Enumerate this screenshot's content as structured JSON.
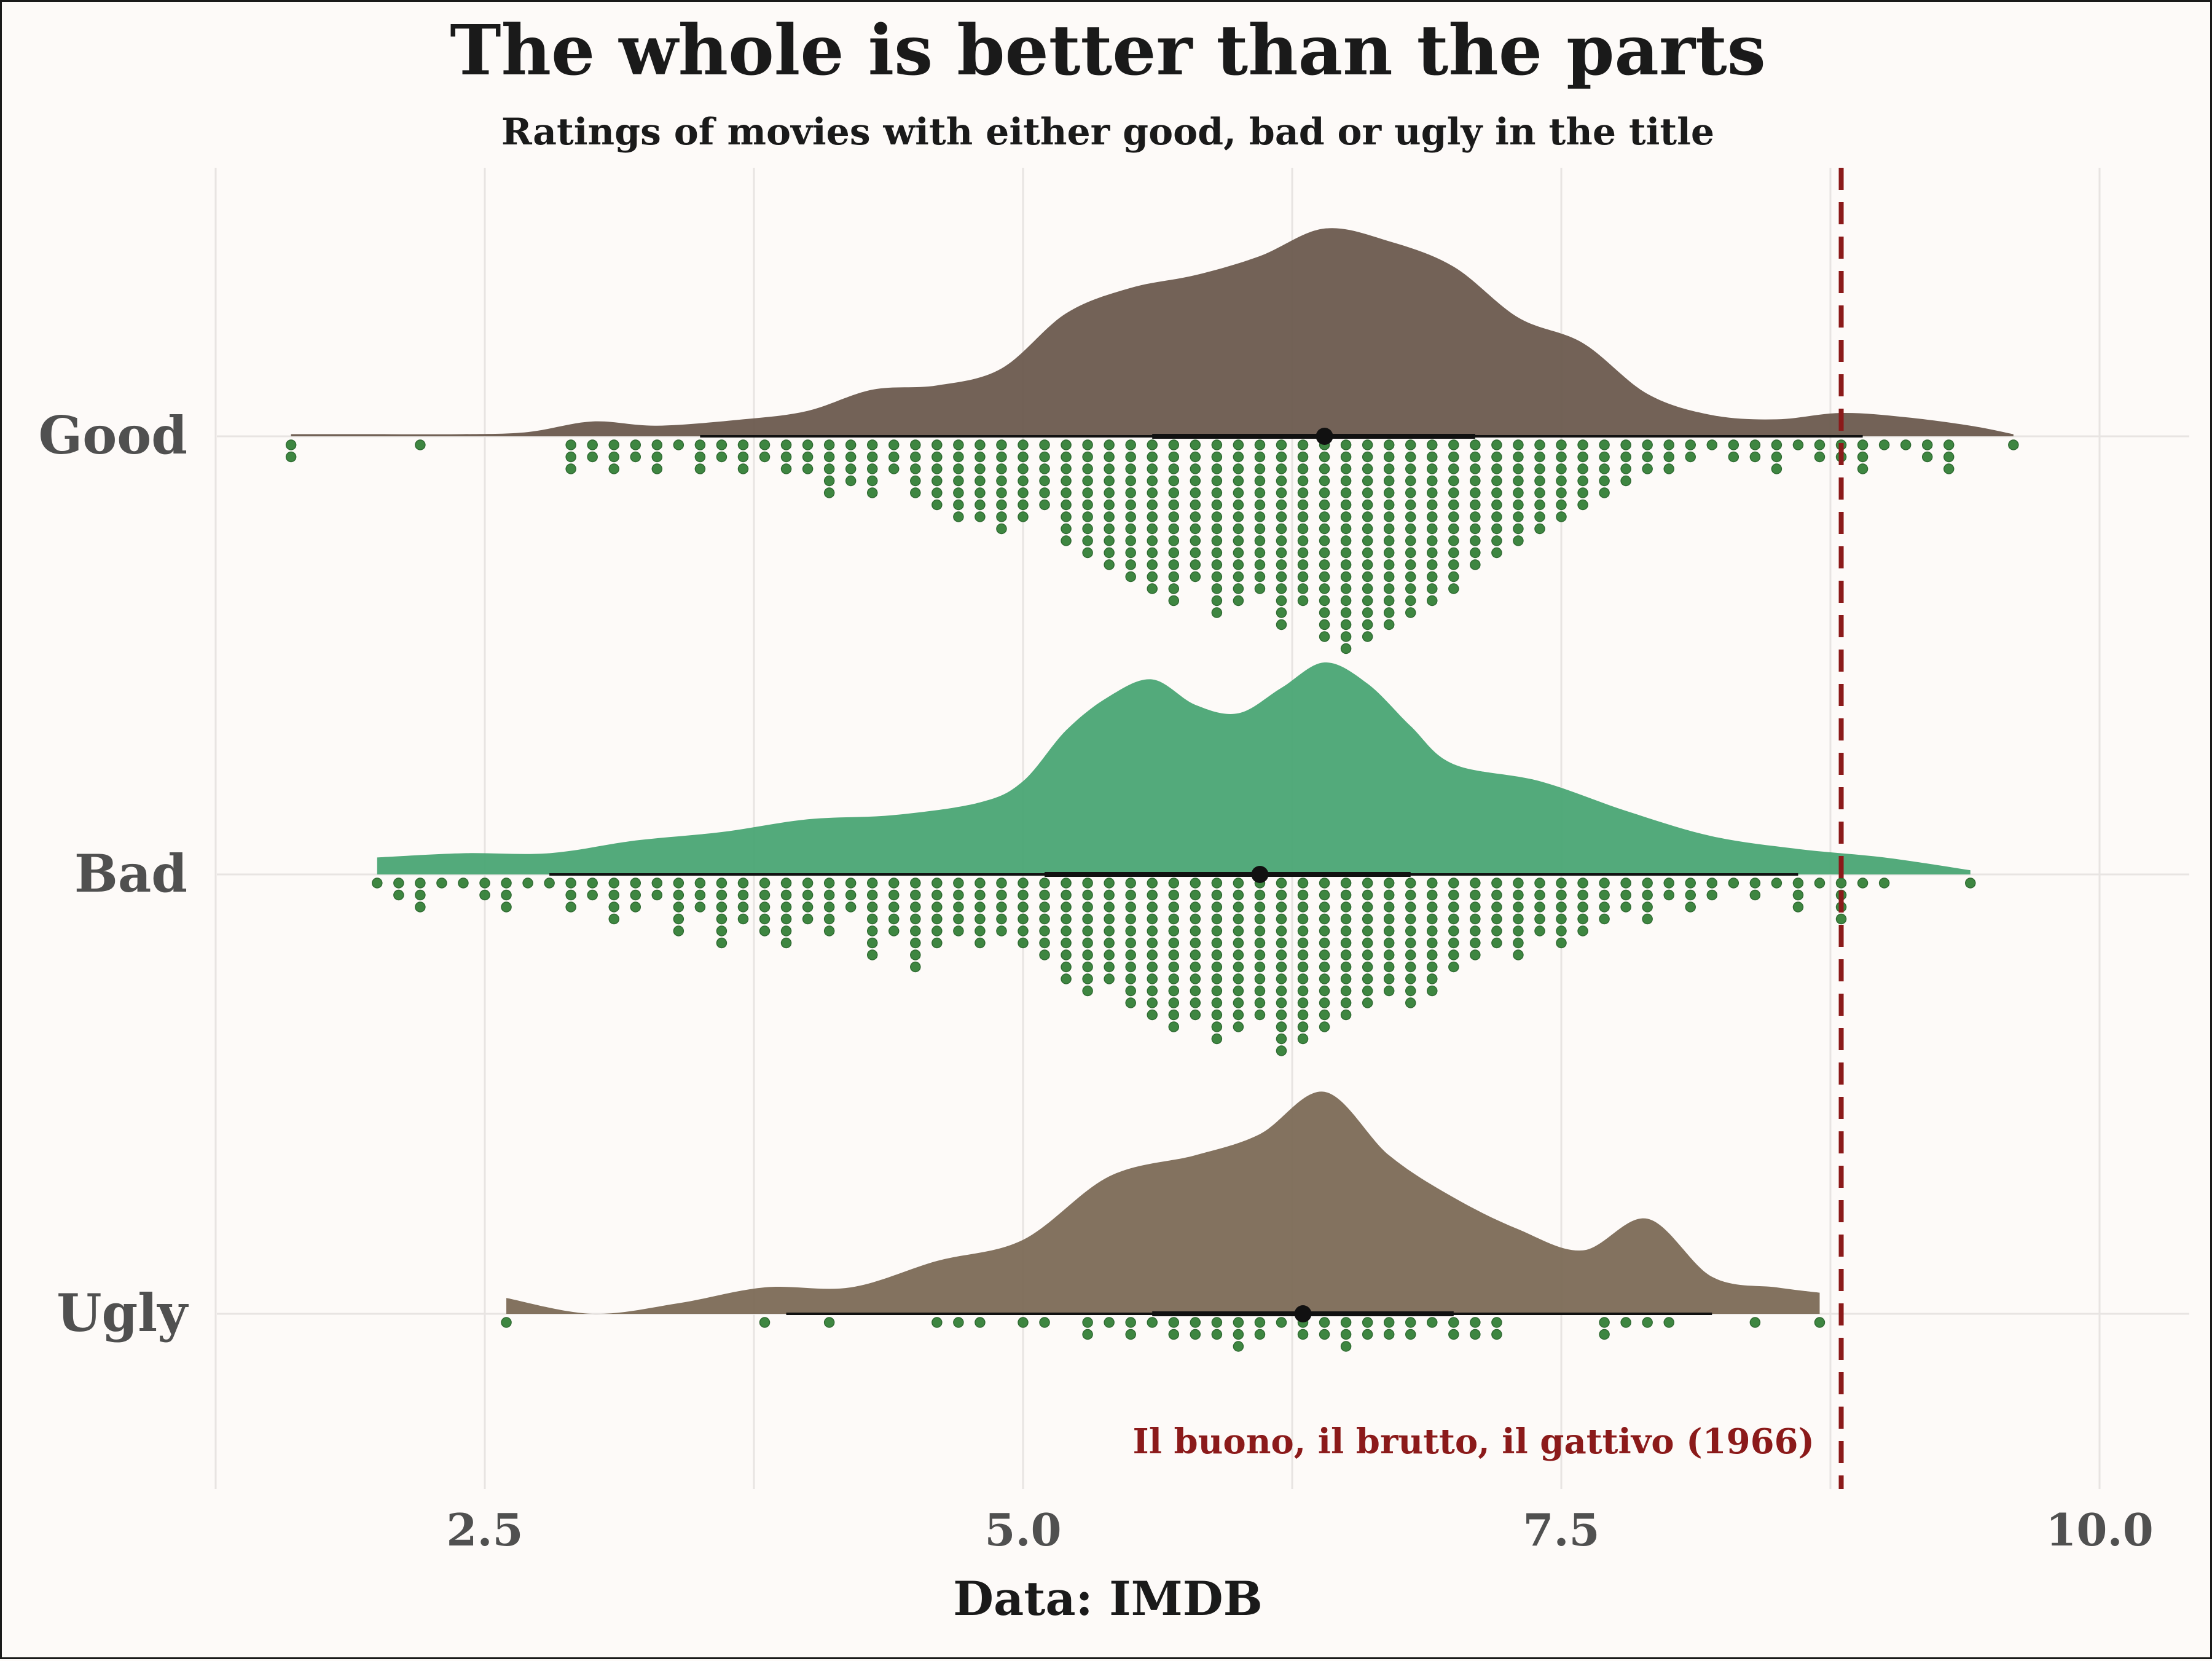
{
  "chart_data": {
    "type": "raincloud",
    "title": "The whole is better than the parts",
    "subtitle": "Ratings of movies with either good, bad or ugly in the title",
    "xlabel": "Data: IMDB",
    "ylabel": "",
    "xlim": [
      1.2,
      10.2
    ],
    "xticks": [
      2.5,
      5.0,
      7.5,
      10.0
    ],
    "xtick_labels": [
      "2.5",
      "5.0",
      "7.5",
      "10.0"
    ],
    "grid": true,
    "categories": [
      "Good",
      "Bad",
      "Ugly"
    ],
    "series": [
      {
        "name": "Good",
        "color": "#6b5a4e",
        "range": [
          1.6,
          9.6
        ],
        "median": 6.4,
        "interval_66": [
          5.6,
          7.1
        ],
        "interval_95": [
          3.5,
          8.9
        ],
        "density": [
          [
            1.6,
            0.01
          ],
          [
            2.0,
            0.01
          ],
          [
            2.4,
            0.01
          ],
          [
            2.7,
            0.02
          ],
          [
            3.0,
            0.07
          ],
          [
            3.3,
            0.05
          ],
          [
            3.7,
            0.08
          ],
          [
            4.0,
            0.12
          ],
          [
            4.3,
            0.22
          ],
          [
            4.6,
            0.24
          ],
          [
            4.9,
            0.32
          ],
          [
            5.2,
            0.58
          ],
          [
            5.5,
            0.7
          ],
          [
            5.8,
            0.76
          ],
          [
            6.1,
            0.85
          ],
          [
            6.4,
            0.98
          ],
          [
            6.7,
            0.92
          ],
          [
            7.0,
            0.8
          ],
          [
            7.3,
            0.56
          ],
          [
            7.6,
            0.44
          ],
          [
            7.9,
            0.2
          ],
          [
            8.2,
            0.1
          ],
          [
            8.5,
            0.08
          ],
          [
            8.8,
            0.11
          ],
          [
            9.1,
            0.09
          ],
          [
            9.4,
            0.05
          ],
          [
            9.6,
            0.01
          ]
        ],
        "dots": [
          [
            1.6,
            2
          ],
          [
            2.2,
            1
          ],
          [
            2.9,
            3
          ],
          [
            3.0,
            2
          ],
          [
            3.1,
            3
          ],
          [
            3.2,
            2
          ],
          [
            3.3,
            3
          ],
          [
            3.4,
            1
          ],
          [
            3.5,
            3
          ],
          [
            3.6,
            2
          ],
          [
            3.7,
            3
          ],
          [
            3.8,
            2
          ],
          [
            3.9,
            3
          ],
          [
            4.0,
            3
          ],
          [
            4.1,
            5
          ],
          [
            4.2,
            4
          ],
          [
            4.3,
            5
          ],
          [
            4.4,
            3
          ],
          [
            4.5,
            5
          ],
          [
            4.6,
            6
          ],
          [
            4.7,
            7
          ],
          [
            4.8,
            7
          ],
          [
            4.9,
            8
          ],
          [
            5.0,
            7
          ],
          [
            5.1,
            6
          ],
          [
            5.2,
            9
          ],
          [
            5.3,
            10
          ],
          [
            5.4,
            11
          ],
          [
            5.5,
            12
          ],
          [
            5.6,
            13
          ],
          [
            5.7,
            14
          ],
          [
            5.8,
            12
          ],
          [
            5.9,
            15
          ],
          [
            6.0,
            14
          ],
          [
            6.1,
            13
          ],
          [
            6.2,
            16
          ],
          [
            6.3,
            14
          ],
          [
            6.4,
            17
          ],
          [
            6.5,
            18
          ],
          [
            6.6,
            17
          ],
          [
            6.7,
            16
          ],
          [
            6.8,
            15
          ],
          [
            6.9,
            14
          ],
          [
            7.0,
            13
          ],
          [
            7.1,
            11
          ],
          [
            7.2,
            10
          ],
          [
            7.3,
            9
          ],
          [
            7.4,
            8
          ],
          [
            7.5,
            7
          ],
          [
            7.6,
            6
          ],
          [
            7.7,
            5
          ],
          [
            7.8,
            4
          ],
          [
            7.9,
            3
          ],
          [
            8.0,
            3
          ],
          [
            8.1,
            2
          ],
          [
            8.2,
            1
          ],
          [
            8.3,
            2
          ],
          [
            8.4,
            2
          ],
          [
            8.5,
            3
          ],
          [
            8.6,
            1
          ],
          [
            8.7,
            2
          ],
          [
            8.8,
            2
          ],
          [
            8.9,
            3
          ],
          [
            9.0,
            1
          ],
          [
            9.1,
            1
          ],
          [
            9.2,
            2
          ],
          [
            9.3,
            3
          ],
          [
            9.6,
            1
          ]
        ]
      },
      {
        "name": "Bad",
        "color": "#4aa574",
        "range": [
          2.0,
          9.4
        ],
        "median": 6.1,
        "interval_66": [
          5.1,
          6.8
        ],
        "interval_95": [
          2.8,
          8.6
        ],
        "density": [
          [
            2.0,
            0.04
          ],
          [
            2.4,
            0.05
          ],
          [
            2.8,
            0.05
          ],
          [
            3.2,
            0.08
          ],
          [
            3.6,
            0.1
          ],
          [
            4.0,
            0.13
          ],
          [
            4.4,
            0.14
          ],
          [
            4.8,
            0.17
          ],
          [
            5.0,
            0.22
          ],
          [
            5.2,
            0.34
          ],
          [
            5.4,
            0.42
          ],
          [
            5.6,
            0.46
          ],
          [
            5.8,
            0.4
          ],
          [
            6.0,
            0.38
          ],
          [
            6.2,
            0.44
          ],
          [
            6.4,
            0.5
          ],
          [
            6.6,
            0.45
          ],
          [
            6.8,
            0.35
          ],
          [
            7.0,
            0.26
          ],
          [
            7.4,
            0.22
          ],
          [
            7.8,
            0.15
          ],
          [
            8.2,
            0.09
          ],
          [
            8.6,
            0.06
          ],
          [
            9.0,
            0.04
          ],
          [
            9.4,
            0.01
          ]
        ],
        "dots": [
          [
            2.0,
            1
          ],
          [
            2.1,
            2
          ],
          [
            2.2,
            3
          ],
          [
            2.3,
            1
          ],
          [
            2.4,
            1
          ],
          [
            2.5,
            2
          ],
          [
            2.6,
            3
          ],
          [
            2.7,
            1
          ],
          [
            2.8,
            1
          ],
          [
            2.9,
            3
          ],
          [
            3.0,
            2
          ],
          [
            3.1,
            4
          ],
          [
            3.2,
            3
          ],
          [
            3.3,
            2
          ],
          [
            3.4,
            5
          ],
          [
            3.5,
            3
          ],
          [
            3.6,
            6
          ],
          [
            3.7,
            4
          ],
          [
            3.8,
            5
          ],
          [
            3.9,
            6
          ],
          [
            4.0,
            4
          ],
          [
            4.1,
            5
          ],
          [
            4.2,
            3
          ],
          [
            4.3,
            7
          ],
          [
            4.4,
            5
          ],
          [
            4.5,
            8
          ],
          [
            4.6,
            6
          ],
          [
            4.7,
            5
          ],
          [
            4.8,
            6
          ],
          [
            4.9,
            5
          ],
          [
            5.0,
            6
          ],
          [
            5.1,
            7
          ],
          [
            5.2,
            9
          ],
          [
            5.3,
            10
          ],
          [
            5.4,
            9
          ],
          [
            5.5,
            11
          ],
          [
            5.6,
            12
          ],
          [
            5.7,
            13
          ],
          [
            5.8,
            12
          ],
          [
            5.9,
            14
          ],
          [
            6.0,
            13
          ],
          [
            6.1,
            12
          ],
          [
            6.2,
            15
          ],
          [
            6.3,
            14
          ],
          [
            6.4,
            13
          ],
          [
            6.5,
            12
          ],
          [
            6.6,
            11
          ],
          [
            6.7,
            10
          ],
          [
            6.8,
            11
          ],
          [
            6.9,
            10
          ],
          [
            7.0,
            8
          ],
          [
            7.1,
            7
          ],
          [
            7.2,
            6
          ],
          [
            7.3,
            7
          ],
          [
            7.4,
            5
          ],
          [
            7.5,
            6
          ],
          [
            7.6,
            5
          ],
          [
            7.7,
            4
          ],
          [
            7.8,
            3
          ],
          [
            7.9,
            4
          ],
          [
            8.0,
            2
          ],
          [
            8.1,
            3
          ],
          [
            8.2,
            2
          ],
          [
            8.3,
            1
          ],
          [
            8.4,
            2
          ],
          [
            8.5,
            1
          ],
          [
            8.6,
            3
          ],
          [
            8.7,
            1
          ],
          [
            8.8,
            4
          ],
          [
            8.9,
            1
          ],
          [
            9.0,
            1
          ],
          [
            9.4,
            1
          ]
        ]
      },
      {
        "name": "Ugly",
        "color": "#7c6a56",
        "range": [
          2.6,
          8.7
        ],
        "median": 6.3,
        "interval_66": [
          5.6,
          7.0
        ],
        "interval_95": [
          3.9,
          8.2
        ],
        "density": [
          [
            2.6,
            0.03
          ],
          [
            3.0,
            0.0
          ],
          [
            3.4,
            0.02
          ],
          [
            3.8,
            0.05
          ],
          [
            4.2,
            0.05
          ],
          [
            4.6,
            0.1
          ],
          [
            5.0,
            0.14
          ],
          [
            5.4,
            0.26
          ],
          [
            5.8,
            0.3
          ],
          [
            6.1,
            0.34
          ],
          [
            6.4,
            0.42
          ],
          [
            6.7,
            0.3
          ],
          [
            7.0,
            0.22
          ],
          [
            7.3,
            0.16
          ],
          [
            7.6,
            0.12
          ],
          [
            7.9,
            0.18
          ],
          [
            8.2,
            0.07
          ],
          [
            8.5,
            0.05
          ],
          [
            8.7,
            0.04
          ]
        ],
        "dots": [
          [
            2.6,
            1
          ],
          [
            3.8,
            1
          ],
          [
            4.1,
            1
          ],
          [
            4.6,
            1
          ],
          [
            4.7,
            1
          ],
          [
            4.8,
            1
          ],
          [
            5.0,
            1
          ],
          [
            5.1,
            1
          ],
          [
            5.3,
            2
          ],
          [
            5.4,
            1
          ],
          [
            5.5,
            2
          ],
          [
            5.6,
            1
          ],
          [
            5.7,
            2
          ],
          [
            5.8,
            2
          ],
          [
            5.9,
            2
          ],
          [
            6.0,
            3
          ],
          [
            6.1,
            2
          ],
          [
            6.2,
            1
          ],
          [
            6.3,
            2
          ],
          [
            6.4,
            2
          ],
          [
            6.5,
            3
          ],
          [
            6.6,
            2
          ],
          [
            6.7,
            2
          ],
          [
            6.8,
            2
          ],
          [
            6.9,
            1
          ],
          [
            7.0,
            2
          ],
          [
            7.1,
            2
          ],
          [
            7.2,
            2
          ],
          [
            7.7,
            2
          ],
          [
            7.8,
            1
          ],
          [
            7.9,
            1
          ],
          [
            8.0,
            1
          ],
          [
            8.4,
            1
          ],
          [
            8.7,
            1
          ]
        ]
      }
    ],
    "reference_line": {
      "value": 8.8,
      "label": "Il buono, il brutto, il gattivo (1966)",
      "color": "#8b1a1a",
      "style": "dashed"
    },
    "dot_color": "#2e7d32"
  }
}
